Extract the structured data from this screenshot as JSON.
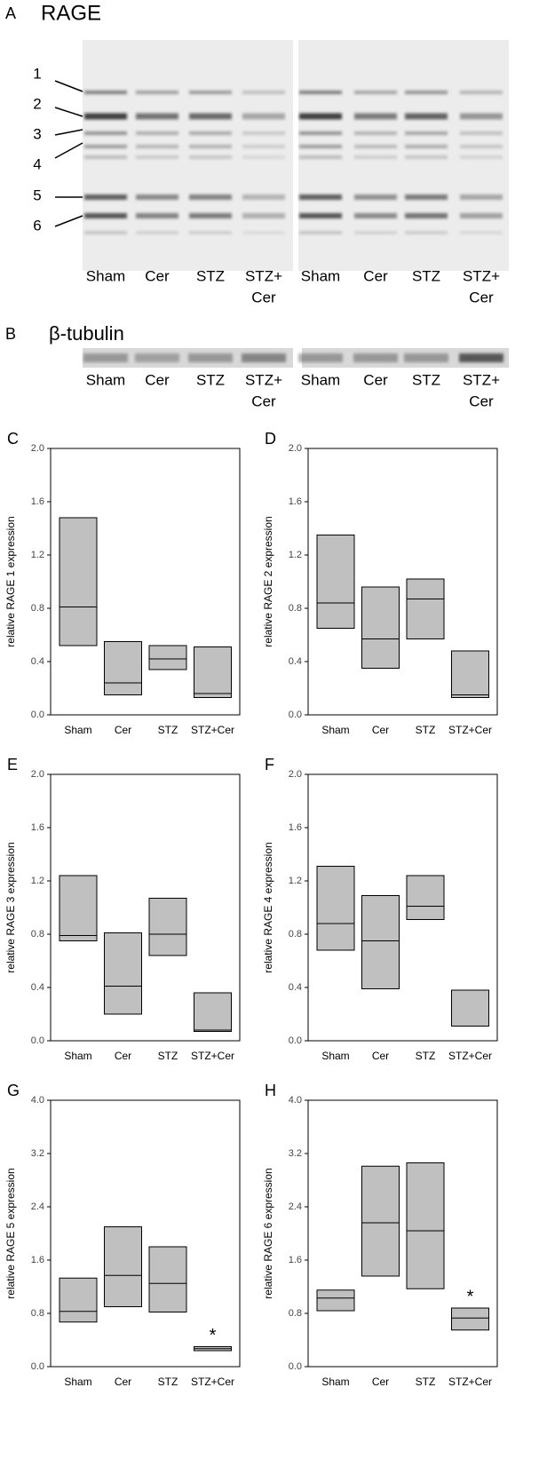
{
  "blots": {
    "panel_a": {
      "label": "A",
      "title": "RAGE",
      "band_labels": [
        "1",
        "2",
        "3",
        "4",
        "5",
        "6"
      ],
      "lanes": [
        [
          "Sham"
        ],
        [
          "Cer"
        ],
        [
          "STZ"
        ],
        [
          "STZ+",
          "Cer"
        ],
        [
          "Sham"
        ],
        [
          "Cer"
        ],
        [
          "STZ"
        ],
        [
          "STZ+",
          "Cer"
        ]
      ]
    },
    "panel_b": {
      "label": "B",
      "title": "β-tubulin",
      "lanes": [
        [
          "Sham"
        ],
        [
          "Cer"
        ],
        [
          "STZ"
        ],
        [
          "STZ+",
          "Cer"
        ],
        [
          "Sham"
        ],
        [
          "Cer"
        ],
        [
          "STZ"
        ],
        [
          "STZ+",
          "Cer"
        ]
      ]
    }
  },
  "chart_data": [
    {
      "type": "box",
      "panel_label": "C",
      "y_label": "relative RAGE 1 expression",
      "categories": [
        "Sham",
        "Cer",
        "STZ",
        "STZ+Cer"
      ],
      "low": [
        0.52,
        0.15,
        0.34,
        0.13
      ],
      "median": [
        0.81,
        0.24,
        0.42,
        0.16
      ],
      "high": [
        1.48,
        0.55,
        0.52,
        0.51
      ],
      "color": "#c0c0c0",
      "ylim": [
        0,
        2
      ],
      "yticks": [
        {
          "value": 0,
          "label": "0.0"
        },
        {
          "value": 0.4,
          "label": "0.4"
        },
        {
          "value": 0.8,
          "label": "0.8"
        },
        {
          "value": 1.2,
          "label": "1.2"
        },
        {
          "value": 1.6,
          "label": "1.6"
        },
        {
          "value": 2,
          "label": "2.0"
        }
      ]
    },
    {
      "type": "box",
      "panel_label": "D",
      "y_label": "relative RAGE 2 expression",
      "categories": [
        "Sham",
        "Cer",
        "STZ",
        "STZ+Cer"
      ],
      "low": [
        0.65,
        0.35,
        0.57,
        0.13
      ],
      "median": [
        0.84,
        0.57,
        0.87,
        0.15
      ],
      "high": [
        1.35,
        0.96,
        1.02,
        0.48
      ],
      "color": "#c0c0c0",
      "ylim": [
        0,
        2
      ],
      "yticks": [
        {
          "value": 0,
          "label": "0.0"
        },
        {
          "value": 0.4,
          "label": "0.4"
        },
        {
          "value": 0.8,
          "label": "0.8"
        },
        {
          "value": 1.2,
          "label": "1.2"
        },
        {
          "value": 1.6,
          "label": "1.6"
        },
        {
          "value": 2,
          "label": "2.0"
        }
      ]
    },
    {
      "type": "box",
      "panel_label": "E",
      "y_label": "relative RAGE 3 expression",
      "categories": [
        "Sham",
        "Cer",
        "STZ",
        "STZ+Cer"
      ],
      "low": [
        0.75,
        0.2,
        0.64,
        0.07
      ],
      "median": [
        0.79,
        0.41,
        0.8,
        0.08
      ],
      "high": [
        1.24,
        0.81,
        1.07,
        0.36
      ],
      "color": "#c0c0c0",
      "ylim": [
        0,
        2
      ],
      "yticks": [
        {
          "value": 0,
          "label": "0.0"
        },
        {
          "value": 0.4,
          "label": "0.4"
        },
        {
          "value": 0.8,
          "label": "0.8"
        },
        {
          "value": 1.2,
          "label": "1.2"
        },
        {
          "value": 1.6,
          "label": "1.6"
        },
        {
          "value": 2,
          "label": "2.0"
        }
      ]
    },
    {
      "type": "box",
      "panel_label": "F",
      "y_label": "relative RAGE 4 expression",
      "categories": [
        "Sham",
        "Cer",
        "STZ",
        "STZ+Cer"
      ],
      "low": [
        0.68,
        0.39,
        0.91,
        0.11
      ],
      "median": [
        0.88,
        0.75,
        1.01,
        0.11
      ],
      "high": [
        1.31,
        1.09,
        1.24,
        0.38
      ],
      "color": "#c0c0c0",
      "ylim": [
        0,
        2
      ],
      "yticks": [
        {
          "value": 0,
          "label": "0.0"
        },
        {
          "value": 0.4,
          "label": "0.4"
        },
        {
          "value": 0.8,
          "label": "0.8"
        },
        {
          "value": 1.2,
          "label": "1.2"
        },
        {
          "value": 1.6,
          "label": "1.6"
        },
        {
          "value": 2,
          "label": "2.0"
        }
      ]
    },
    {
      "type": "box",
      "panel_label": "G",
      "y_label": "relative RAGE 5 expression",
      "categories": [
        "Sham",
        "Cer",
        "STZ",
        "STZ+Cer"
      ],
      "low": [
        0.67,
        0.9,
        0.82,
        0.24
      ],
      "median": [
        0.83,
        1.37,
        1.25,
        0.27
      ],
      "high": [
        1.33,
        2.1,
        1.8,
        0.3
      ],
      "color": "#c0c0c0",
      "ylim": [
        0,
        4
      ],
      "yticks": [
        {
          "value": 0,
          "label": "0.0"
        },
        {
          "value": 0.8,
          "label": "0.8"
        },
        {
          "value": 1.6,
          "label": "1.6"
        },
        {
          "value": 2.4,
          "label": "2.4"
        },
        {
          "value": 3.2,
          "label": "3.2"
        },
        {
          "value": 4,
          "label": "4.0"
        }
      ],
      "annotation": "*",
      "annotation_category": "STZ+Cer"
    },
    {
      "type": "box",
      "panel_label": "H",
      "y_label": "relative RAGE 6 expression",
      "categories": [
        "Sham",
        "Cer",
        "STZ",
        "STZ+Cer"
      ],
      "low": [
        0.84,
        1.36,
        1.17,
        0.55
      ],
      "median": [
        1.03,
        2.16,
        2.04,
        0.73
      ],
      "high": [
        1.15,
        3.01,
        3.06,
        0.88
      ],
      "color": "#c0c0c0",
      "ylim": [
        0,
        4
      ],
      "yticks": [
        {
          "value": 0,
          "label": "0.0"
        },
        {
          "value": 0.8,
          "label": "0.8"
        },
        {
          "value": 1.6,
          "label": "1.6"
        },
        {
          "value": 2.4,
          "label": "2.4"
        },
        {
          "value": 3.2,
          "label": "3.2"
        },
        {
          "value": 4,
          "label": "4.0"
        }
      ],
      "annotation": "*",
      "annotation_category": "STZ+Cer"
    }
  ]
}
